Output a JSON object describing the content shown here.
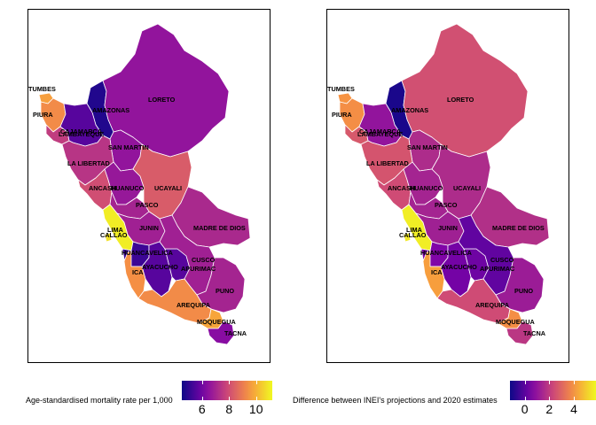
{
  "regions": [
    "TUMBES",
    "PIURA",
    "AMAZONAS",
    "LAMBAYEQUE",
    "CAJAMARCA",
    "LORETO",
    "SAN MARTIN",
    "LA LIBERTAD",
    "ANCASH",
    "HUANUCO",
    "UCAYALI",
    "PASCO",
    "LIMA",
    "CALLAO",
    "JUNIN",
    "MADRE DE DIOS",
    "HUANCAVELICA",
    "AYACUCHO",
    "APURIMAC",
    "CUSCO",
    "ICA",
    "PUNO",
    "AREQUIPA",
    "MOQUEGUA",
    "TACNA"
  ],
  "maps": [
    {
      "id": "mortality",
      "legend_title": "Age-standardised mortality rate per 1,000",
      "scale": {
        "min": 4.5,
        "max": 11.2,
        "ticks": [
          "6",
          "8",
          "10"
        ],
        "tick_values": [
          6,
          8,
          10
        ]
      },
      "values": {
        "TUMBES": 9.7,
        "PIURA": 9.3,
        "AMAZONAS": 4.8,
        "LAMBAYEQUE": 7.6,
        "CAJAMARCA": 5.6,
        "LORETO": 6.6,
        "SAN MARTIN": 6.6,
        "LA LIBERTAD": 7.4,
        "ANCASH": 8.0,
        "HUANUCO": 6.7,
        "UCAYALI": 8.3,
        "PASCO": 7.0,
        "LIMA": 11.0,
        "CALLAO": 10.8,
        "JUNIN": 6.9,
        "MADRE DE DIOS": 7.1,
        "HUANCAVELICA": 5.2,
        "AYACUCHO": 5.6,
        "APURIMAC": 5.6,
        "CUSCO": 6.9,
        "ICA": 9.4,
        "PUNO": 7.0,
        "AREQUIPA": 9.3,
        "MOQUEGUA": 9.8,
        "TACNA": 6.4
      }
    },
    {
      "id": "difference",
      "legend_title": "Difference between INEI's projections and 2020 estimates",
      "scale": {
        "min": -1.2,
        "max": 5.8,
        "ticks": [
          "0",
          "2",
          "4"
        ],
        "tick_values": [
          0,
          2,
          4
        ]
      },
      "values": {
        "TUMBES": 4.0,
        "PIURA": 3.9,
        "AMAZONAS": -1.0,
        "LAMBAYEQUE": 2.7,
        "CAJAMARCA": 1.0,
        "LORETO": 2.5,
        "SAN MARTIN": 1.6,
        "LA LIBERTAD": 2.6,
        "ANCASH": 2.4,
        "HUANUCO": 1.4,
        "UCAYALI": 1.6,
        "PASCO": 1.4,
        "LIMA": 5.6,
        "CALLAO": 5.5,
        "JUNIN": 1.3,
        "MADRE DE DIOS": 1.7,
        "HUANCAVELICA": 0.6,
        "AYACUCHO": 0.4,
        "APURIMAC": 0.3,
        "CUSCO": 0.1,
        "ICA": 4.2,
        "PUNO": 1.2,
        "AREQUIPA": 2.4,
        "MOQUEGUA": 3.9,
        "TACNA": 1.9
      }
    }
  ]
}
